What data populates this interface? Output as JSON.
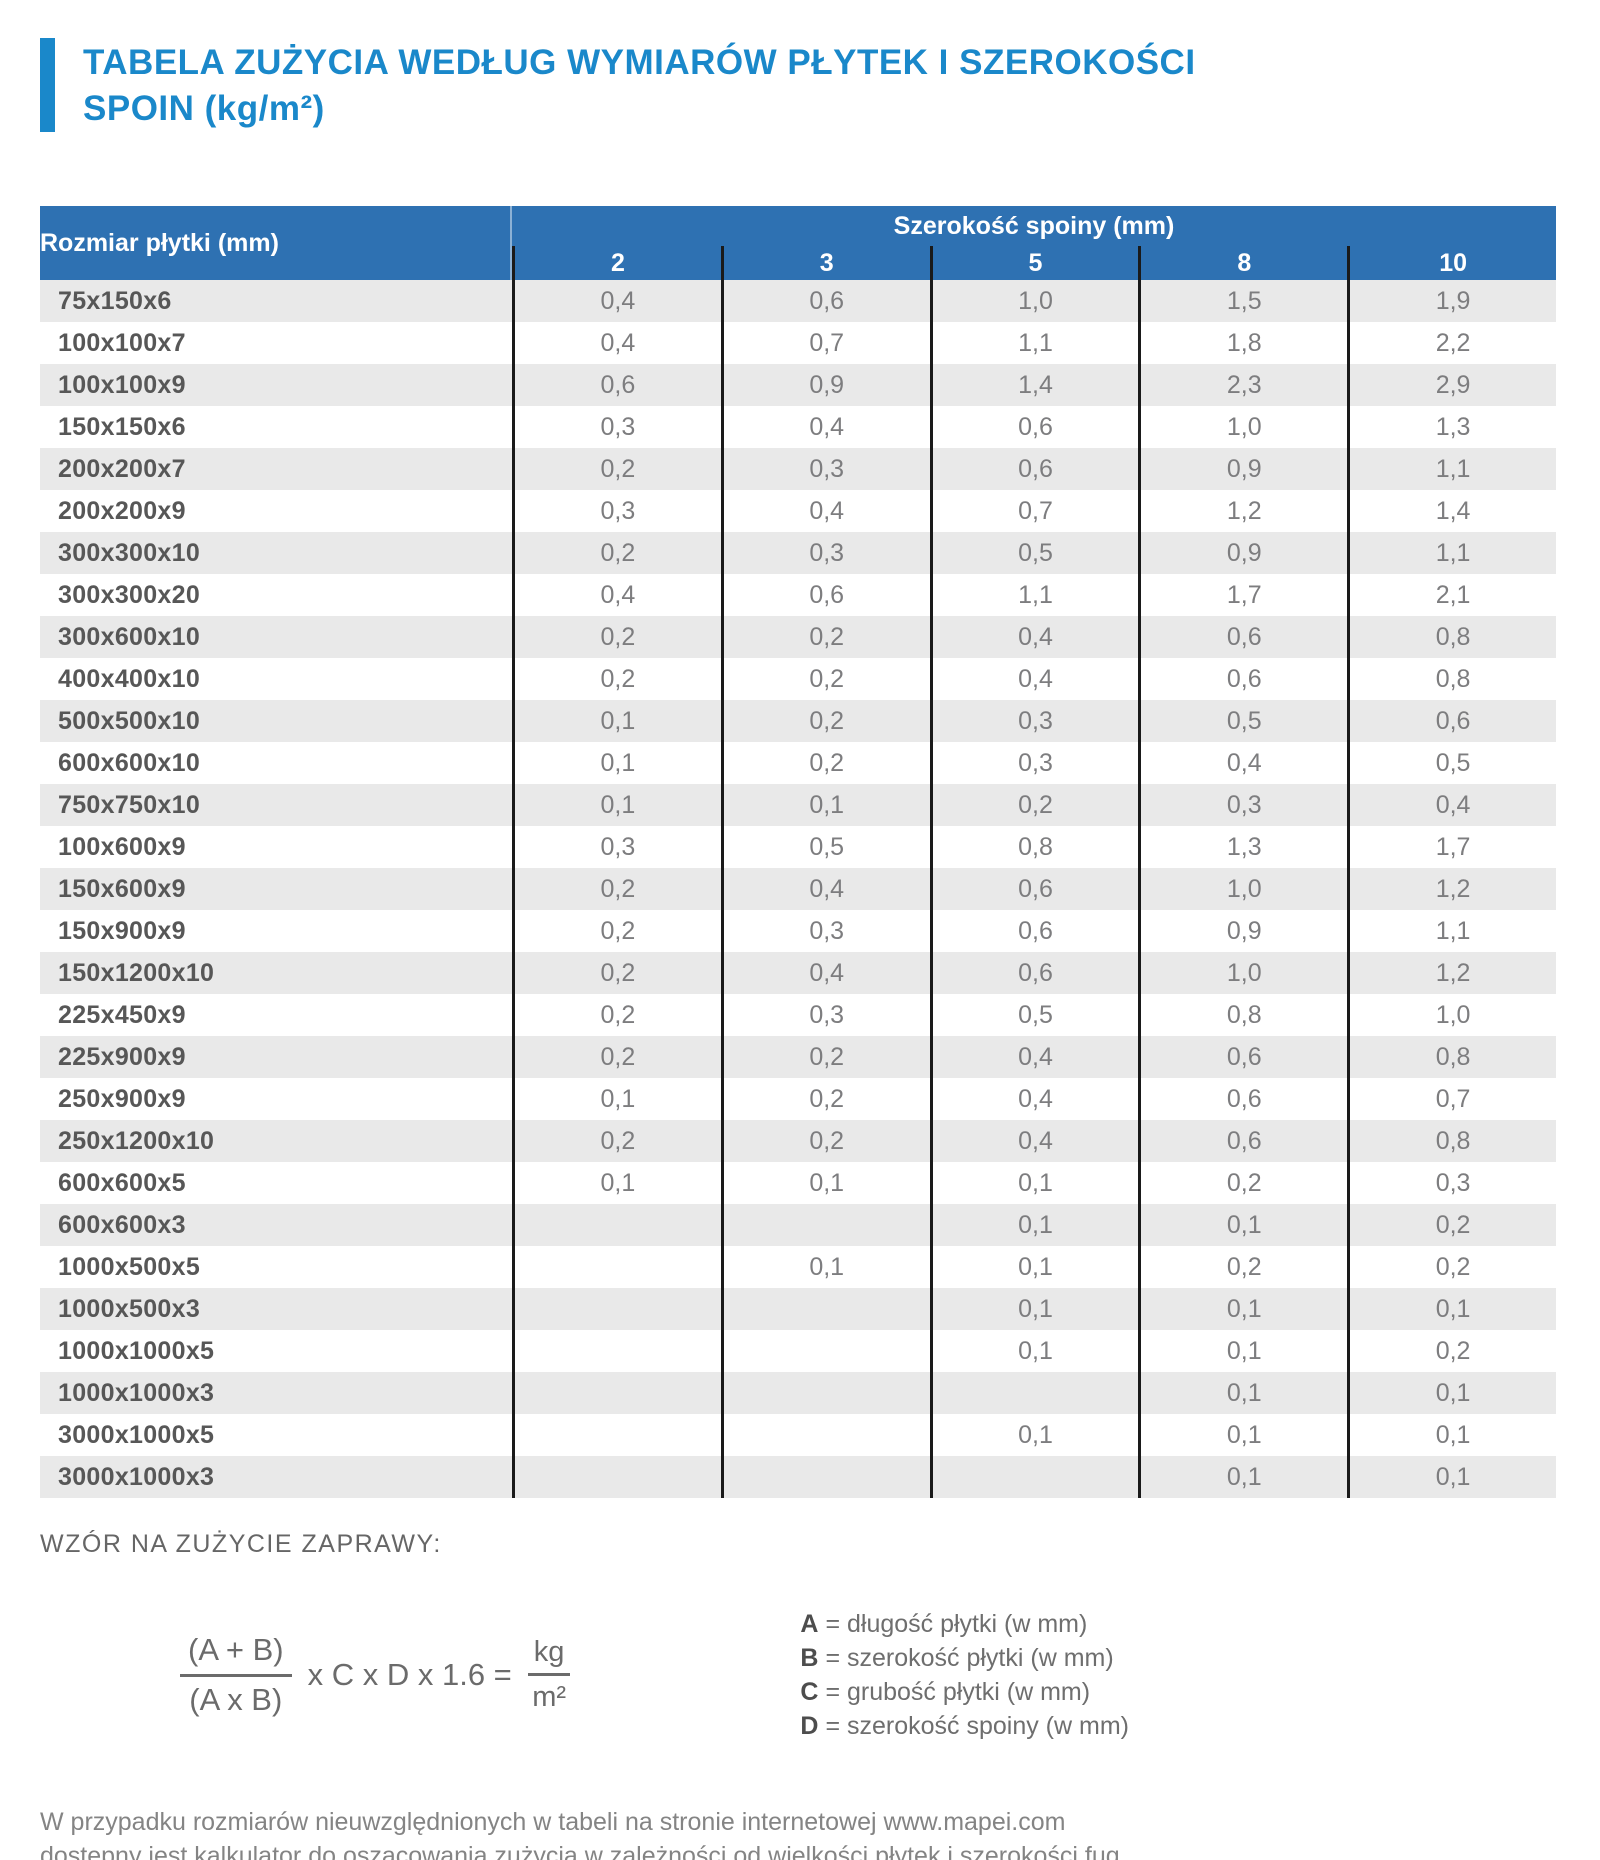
{
  "title": {
    "line1": "TABELA ZUŻYCIA WEDŁUG WYMIARÓW PŁYTEK I SZEROKOŚCI",
    "line2": "SPOIN (kg/m²)"
  },
  "table": {
    "row_header": "Rozmiar płytki (mm)",
    "col_group_header": "Szerokość spoiny (mm)",
    "col_headers": [
      "2",
      "3",
      "5",
      "8",
      "10"
    ],
    "rows": [
      {
        "size": "75x150x6",
        "values": [
          "0,4",
          "0,6",
          "1,0",
          "1,5",
          "1,9"
        ]
      },
      {
        "size": "100x100x7",
        "values": [
          "0,4",
          "0,7",
          "1,1",
          "1,8",
          "2,2"
        ]
      },
      {
        "size": "100x100x9",
        "values": [
          "0,6",
          "0,9",
          "1,4",
          "2,3",
          "2,9"
        ]
      },
      {
        "size": "150x150x6",
        "values": [
          "0,3",
          "0,4",
          "0,6",
          "1,0",
          "1,3"
        ]
      },
      {
        "size": "200x200x7",
        "values": [
          "0,2",
          "0,3",
          "0,6",
          "0,9",
          "1,1"
        ]
      },
      {
        "size": "200x200x9",
        "values": [
          "0,3",
          "0,4",
          "0,7",
          "1,2",
          "1,4"
        ]
      },
      {
        "size": "300x300x10",
        "values": [
          "0,2",
          "0,3",
          "0,5",
          "0,9",
          "1,1"
        ]
      },
      {
        "size": "300x300x20",
        "values": [
          "0,4",
          "0,6",
          "1,1",
          "1,7",
          "2,1"
        ]
      },
      {
        "size": "300x600x10",
        "values": [
          "0,2",
          "0,2",
          "0,4",
          "0,6",
          "0,8"
        ]
      },
      {
        "size": "400x400x10",
        "values": [
          "0,2",
          "0,2",
          "0,4",
          "0,6",
          "0,8"
        ]
      },
      {
        "size": "500x500x10",
        "values": [
          "0,1",
          "0,2",
          "0,3",
          "0,5",
          "0,6"
        ]
      },
      {
        "size": "600x600x10",
        "values": [
          "0,1",
          "0,2",
          "0,3",
          "0,4",
          "0,5"
        ]
      },
      {
        "size": "750x750x10",
        "values": [
          "0,1",
          "0,1",
          "0,2",
          "0,3",
          "0,4"
        ]
      },
      {
        "size": "100x600x9",
        "values": [
          "0,3",
          "0,5",
          "0,8",
          "1,3",
          "1,7"
        ]
      },
      {
        "size": "150x600x9",
        "values": [
          "0,2",
          "0,4",
          "0,6",
          "1,0",
          "1,2"
        ]
      },
      {
        "size": "150x900x9",
        "values": [
          "0,2",
          "0,3",
          "0,6",
          "0,9",
          "1,1"
        ]
      },
      {
        "size": "150x1200x10",
        "values": [
          "0,2",
          "0,4",
          "0,6",
          "1,0",
          "1,2"
        ]
      },
      {
        "size": "225x450x9",
        "values": [
          "0,2",
          "0,3",
          "0,5",
          "0,8",
          "1,0"
        ]
      },
      {
        "size": "225x900x9",
        "values": [
          "0,2",
          "0,2",
          "0,4",
          "0,6",
          "0,8"
        ]
      },
      {
        "size": "250x900x9",
        "values": [
          "0,1",
          "0,2",
          "0,4",
          "0,6",
          "0,7"
        ]
      },
      {
        "size": "250x1200x10",
        "values": [
          "0,2",
          "0,2",
          "0,4",
          "0,6",
          "0,8"
        ]
      },
      {
        "size": "600x600x5",
        "values": [
          "0,1",
          "0,1",
          "0,1",
          "0,2",
          "0,3"
        ]
      },
      {
        "size": "600x600x3",
        "values": [
          "",
          "",
          "0,1",
          "0,1",
          "0,2"
        ]
      },
      {
        "size": "1000x500x5",
        "values": [
          "",
          "0,1",
          "0,1",
          "0,2",
          "0,2"
        ]
      },
      {
        "size": "1000x500x3",
        "values": [
          "",
          "",
          "0,1",
          "0,1",
          "0,1"
        ]
      },
      {
        "size": "1000x1000x5",
        "values": [
          "",
          "",
          "0,1",
          "0,1",
          "0,2"
        ]
      },
      {
        "size": "1000x1000x3",
        "values": [
          "",
          "",
          "",
          "0,1",
          "0,1"
        ]
      },
      {
        "size": "3000x1000x5",
        "values": [
          "",
          "",
          "0,1",
          "0,1",
          "0,1"
        ]
      },
      {
        "size": "3000x1000x3",
        "values": [
          "",
          "",
          "",
          "0,1",
          "0,1"
        ]
      }
    ]
  },
  "formula": {
    "heading": "WZÓR NA ZUŻYCIE ZAPRAWY:",
    "numerator": "(A + B)",
    "denominator": "(A x B)",
    "middle": "x C x D x 1.6 =",
    "result_numerator": "kg",
    "result_denominator": "m²",
    "legend": [
      {
        "symbol": "A",
        "text": "= długość płytki (w mm)"
      },
      {
        "symbol": "B",
        "text": "= szerokość płytki (w mm)"
      },
      {
        "symbol": "C",
        "text": "= grubość płytki (w mm)"
      },
      {
        "symbol": "D",
        "text": "= szerokość spoiny (w mm)"
      }
    ]
  },
  "footer": {
    "line1": "W przypadku rozmiarów nieuwzględnionych w tabeli na stronie internetowej www.mapei.com",
    "line2": "dostępny jest kalkulator do oszacowania zużycia w zależności od wielkości płytek i szerokości fug."
  },
  "colors": {
    "accent_blue": "#1a88ca",
    "table_header_blue": "#2e71b2",
    "row_alt_gray": "#e9e9e9",
    "divider_black": "#1a1a1a",
    "value_text_gray": "#7d7d7f"
  }
}
